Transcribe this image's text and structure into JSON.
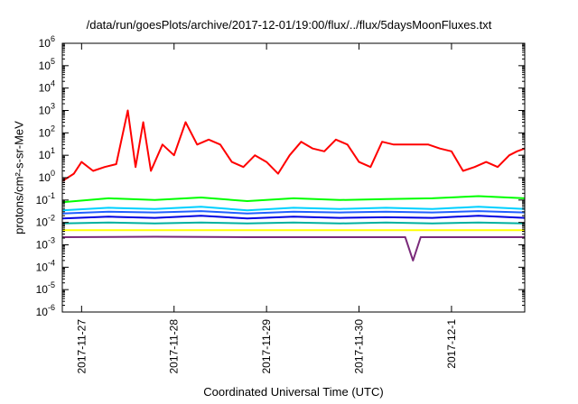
{
  "chart_data": {
    "type": "line",
    "title": "/data/run/goesPlots/archive/2017-12-01/19:00/flux/../flux/5daysMoonFluxes.txt",
    "xlabel": "Coordinated Universal Time (UTC)",
    "ylabel": "protons/cm²-s-sr-MeV",
    "yscale": "log",
    "ylim": [
      1e-06,
      1000000.0
    ],
    "xlim": [
      "2017-11-26 19:00",
      "2017-12-01 19:00"
    ],
    "xticks": [
      "2017-11-27",
      "2017-11-28",
      "2017-11-29",
      "2017-11-30",
      "2017-12-1"
    ],
    "yticks": [
      {
        "base": "10",
        "exp": "-6"
      },
      {
        "base": "10",
        "exp": "-5"
      },
      {
        "base": "10",
        "exp": "-4"
      },
      {
        "base": "10",
        "exp": "-3"
      },
      {
        "base": "10",
        "exp": "-2"
      },
      {
        "base": "10",
        "exp": "-1"
      },
      {
        "base": "10",
        "exp": "0"
      },
      {
        "base": "10",
        "exp": "1"
      },
      {
        "base": "10",
        "exp": "2"
      },
      {
        "base": "10",
        "exp": "3"
      },
      {
        "base": "10",
        "exp": "4"
      },
      {
        "base": "10",
        "exp": "5"
      },
      {
        "base": "10",
        "exp": "6"
      }
    ],
    "grid": false,
    "legend": "none",
    "series": [
      {
        "color": "#ff0000",
        "values": [
          [
            "2017-11-26 19:00",
            0.7
          ],
          [
            "2017-11-26 22:00",
            1.5
          ],
          [
            "2017-11-27 00:00",
            5
          ],
          [
            "2017-11-27 03:00",
            2
          ],
          [
            "2017-11-27 06:00",
            3
          ],
          [
            "2017-11-27 09:00",
            4
          ],
          [
            "2017-11-27 12:00",
            1000
          ],
          [
            "2017-11-27 14:00",
            3
          ],
          [
            "2017-11-27 16:00",
            300
          ],
          [
            "2017-11-27 18:00",
            2
          ],
          [
            "2017-11-27 21:00",
            30
          ],
          [
            "2017-11-28 00:00",
            10
          ],
          [
            "2017-11-28 03:00",
            300
          ],
          [
            "2017-11-28 06:00",
            30
          ],
          [
            "2017-11-28 09:00",
            50
          ],
          [
            "2017-11-28 12:00",
            30
          ],
          [
            "2017-11-28 15:00",
            5
          ],
          [
            "2017-11-28 18:00",
            3
          ],
          [
            "2017-11-28 21:00",
            10
          ],
          [
            "2017-11-29 00:00",
            5
          ],
          [
            "2017-11-29 03:00",
            1.5
          ],
          [
            "2017-11-29 06:00",
            10
          ],
          [
            "2017-11-29 09:00",
            40
          ],
          [
            "2017-11-29 12:00",
            20
          ],
          [
            "2017-11-29 15:00",
            15
          ],
          [
            "2017-11-29 18:00",
            50
          ],
          [
            "2017-11-29 21:00",
            30
          ],
          [
            "2017-11-30 00:00",
            5
          ],
          [
            "2017-11-30 03:00",
            3
          ],
          [
            "2017-11-30 06:00",
            40
          ],
          [
            "2017-11-30 09:00",
            30
          ],
          [
            "2017-11-30 12:00",
            30
          ],
          [
            "2017-11-30 15:00",
            30
          ],
          [
            "2017-11-30 18:00",
            30
          ],
          [
            "2017-11-30 21:00",
            20
          ],
          [
            "2017-12-01 00:00",
            15
          ],
          [
            "2017-12-01 03:00",
            2
          ],
          [
            "2017-12-01 06:00",
            3
          ],
          [
            "2017-12-01 09:00",
            5
          ],
          [
            "2017-12-01 12:00",
            3
          ],
          [
            "2017-12-01 15:00",
            10
          ],
          [
            "2017-12-01 17:00",
            15
          ],
          [
            "2017-12-01 19:00",
            20
          ]
        ]
      },
      {
        "color": "#00ff00",
        "values": [
          [
            "2017-11-26 19:00",
            0.08
          ],
          [
            "2017-11-27 07:00",
            0.12
          ],
          [
            "2017-11-27 19:00",
            0.1
          ],
          [
            "2017-11-28 07:00",
            0.13
          ],
          [
            "2017-11-28 19:00",
            0.09
          ],
          [
            "2017-11-29 07:00",
            0.12
          ],
          [
            "2017-11-29 19:00",
            0.1
          ],
          [
            "2017-11-30 07:00",
            0.11
          ],
          [
            "2017-11-30 19:00",
            0.12
          ],
          [
            "2017-12-01 07:00",
            0.15
          ],
          [
            "2017-12-01 19:00",
            0.12
          ]
        ]
      },
      {
        "color": "#00d0ff",
        "values": [
          [
            "2017-11-26 19:00",
            0.035
          ],
          [
            "2017-11-27 07:00",
            0.045
          ],
          [
            "2017-11-27 19:00",
            0.04
          ],
          [
            "2017-11-28 07:00",
            0.05
          ],
          [
            "2017-11-28 19:00",
            0.035
          ],
          [
            "2017-11-29 07:00",
            0.045
          ],
          [
            "2017-11-29 19:00",
            0.04
          ],
          [
            "2017-11-30 07:00",
            0.045
          ],
          [
            "2017-11-30 19:00",
            0.04
          ],
          [
            "2017-12-01 07:00",
            0.05
          ],
          [
            "2017-12-01 19:00",
            0.04
          ]
        ]
      },
      {
        "color": "#2060ff",
        "values": [
          [
            "2017-11-26 19:00",
            0.025
          ],
          [
            "2017-11-27 07:00",
            0.03
          ],
          [
            "2017-11-27 19:00",
            0.028
          ],
          [
            "2017-11-28 07:00",
            0.032
          ],
          [
            "2017-11-28 19:00",
            0.025
          ],
          [
            "2017-11-29 07:00",
            0.03
          ],
          [
            "2017-11-29 19:00",
            0.028
          ],
          [
            "2017-11-30 07:00",
            0.03
          ],
          [
            "2017-11-30 19:00",
            0.028
          ],
          [
            "2017-12-01 07:00",
            0.032
          ],
          [
            "2017-12-01 19:00",
            0.028
          ]
        ]
      },
      {
        "color": "#0000e0",
        "values": [
          [
            "2017-11-26 19:00",
            0.015
          ],
          [
            "2017-11-27 07:00",
            0.018
          ],
          [
            "2017-11-27 19:00",
            0.016
          ],
          [
            "2017-11-28 07:00",
            0.02
          ],
          [
            "2017-11-28 19:00",
            0.015
          ],
          [
            "2017-11-29 07:00",
            0.018
          ],
          [
            "2017-11-29 19:00",
            0.016
          ],
          [
            "2017-11-30 07:00",
            0.017
          ],
          [
            "2017-11-30 19:00",
            0.016
          ],
          [
            "2017-12-01 07:00",
            0.02
          ],
          [
            "2017-12-01 19:00",
            0.016
          ]
        ]
      },
      {
        "color": "#00b0a0",
        "values": [
          [
            "2017-11-26 19:00",
            0.009
          ],
          [
            "2017-11-27 07:00",
            0.01
          ],
          [
            "2017-11-27 19:00",
            0.009
          ],
          [
            "2017-11-28 07:00",
            0.01
          ],
          [
            "2017-11-28 19:00",
            0.009
          ],
          [
            "2017-11-29 07:00",
            0.01
          ],
          [
            "2017-11-29 19:00",
            0.009
          ],
          [
            "2017-11-30 07:00",
            0.01
          ],
          [
            "2017-11-30 19:00",
            0.009
          ],
          [
            "2017-12-01 07:00",
            0.01
          ],
          [
            "2017-12-01 19:00",
            0.009
          ]
        ]
      },
      {
        "color": "#ffff00",
        "values": [
          [
            "2017-11-26 19:00",
            0.0045
          ],
          [
            "2017-11-27 19:00",
            0.0045
          ],
          [
            "2017-11-28 19:00",
            0.0045
          ],
          [
            "2017-11-29 19:00",
            0.0045
          ],
          [
            "2017-11-30 19:00",
            0.0045
          ],
          [
            "2017-12-01 19:00",
            0.0045
          ]
        ]
      },
      {
        "color": "#7a2a7a",
        "values": [
          [
            "2017-11-26 19:00",
            0.0022
          ],
          [
            "2017-11-27 19:00",
            0.0023
          ],
          [
            "2017-11-28 19:00",
            0.0022
          ],
          [
            "2017-11-29 19:00",
            0.0022
          ],
          [
            "2017-11-30 12:00",
            0.0022
          ],
          [
            "2017-11-30 14:00",
            0.0002
          ],
          [
            "2017-11-30 16:00",
            0.0022
          ],
          [
            "2017-12-01 19:00",
            0.0022
          ]
        ]
      }
    ]
  }
}
